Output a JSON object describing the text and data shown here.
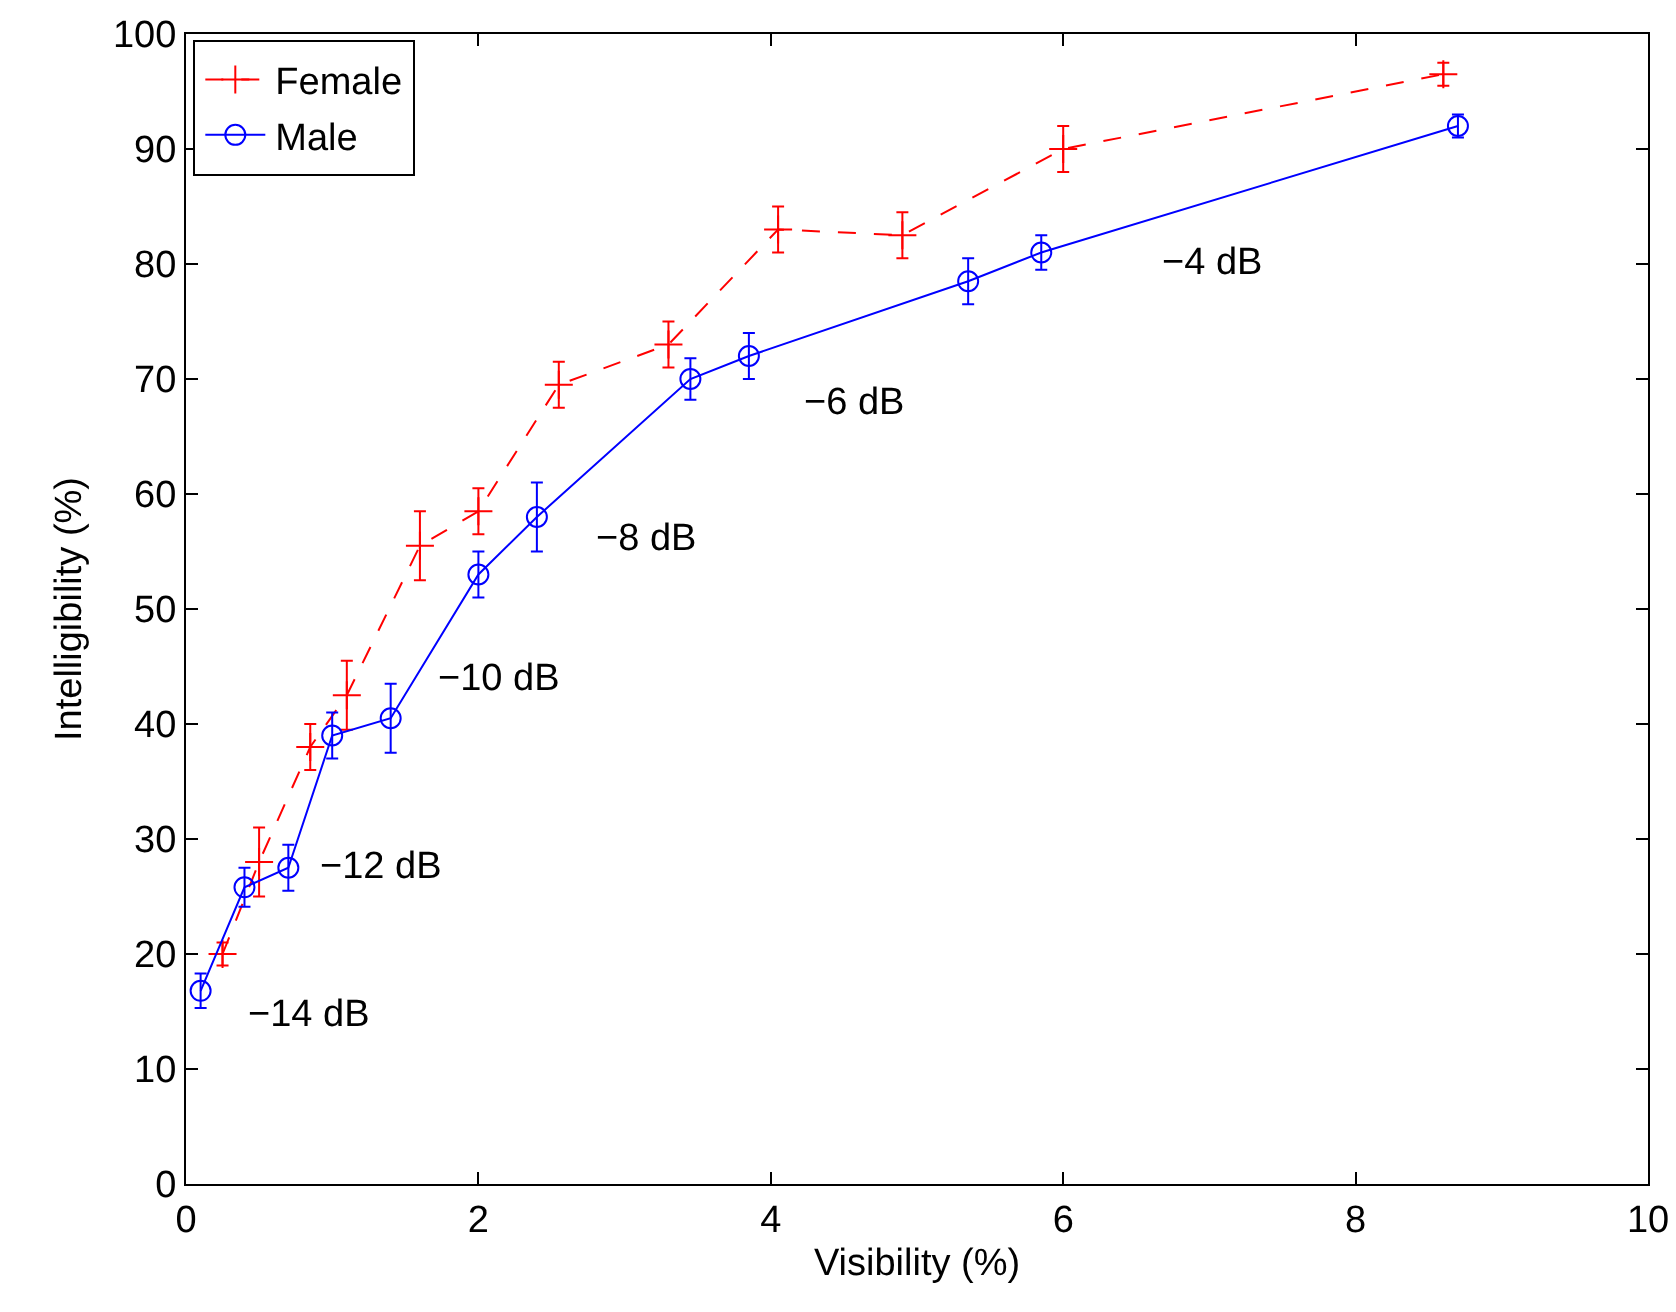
{
  "chart_data": {
    "type": "line",
    "xlabel": "Visibility (%)",
    "ylabel": "Intelligibility (%)",
    "xlim": [
      0,
      10
    ],
    "xticks": [
      0,
      2,
      4,
      6,
      8,
      10
    ],
    "ylim": [
      0,
      100
    ],
    "yticks": [
      0,
      10,
      20,
      30,
      40,
      50,
      60,
      70,
      80,
      90,
      100
    ],
    "grid": false,
    "legend": "top left",
    "series": [
      {
        "name": "Female",
        "color": "#ff0000",
        "marker": "cross",
        "line_style": "dashed",
        "x": [
          0.25,
          0.5,
          0.85,
          1.1,
          1.6,
          2.0,
          2.55,
          3.3,
          4.05,
          4.9,
          6.0,
          8.6
        ],
        "values": [
          20,
          28,
          38,
          42.5,
          55.5,
          58.5,
          69.5,
          73,
          83,
          82.5,
          90,
          96.5
        ],
        "errors": [
          1,
          3,
          2,
          3,
          3,
          2,
          2,
          2,
          2,
          2,
          2,
          1
        ]
      },
      {
        "name": "Male",
        "color": "#0000ff",
        "marker": "circle",
        "line_style": "solid",
        "x": [
          0.1,
          0.4,
          0.7,
          1.0,
          1.4,
          2.0,
          2.4,
          3.45,
          3.85,
          5.35,
          5.85,
          8.7
        ],
        "values": [
          16.8,
          25.8,
          27.5,
          39,
          40.5,
          53,
          58,
          70,
          72,
          78.5,
          81,
          92
        ],
        "errors": [
          1.5,
          1.7,
          2,
          2,
          3,
          2,
          3,
          1.8,
          2,
          2,
          1.5,
          1
        ]
      }
    ],
    "annotations": [
      "−14 dB",
      "−12 dB",
      "−10 dB",
      "−8 dB",
      "−6 dB",
      "−4 dB"
    ]
  }
}
